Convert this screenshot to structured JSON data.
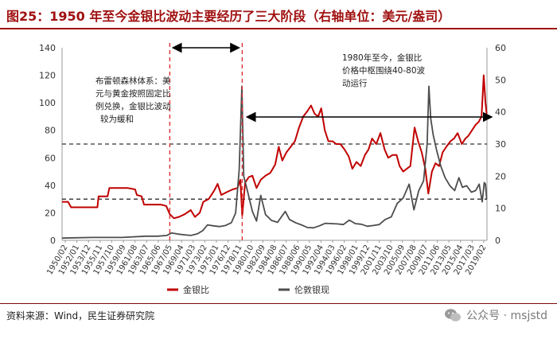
{
  "title": "图25：1950 年至今金银比波动主要经历了三大阶段（右轴单位：美元/盎司）",
  "source": "资料来源：Wind，民生证券研究院",
  "watermark": {
    "icon": "wechat-icon",
    "text": "公众号 · msjstd"
  },
  "colors": {
    "title": "#a01010",
    "gold_silver_ratio": "#c00000",
    "silver": "#4d4d4d",
    "phase_line": "#e03030"
  },
  "chart_data": {
    "type": "line",
    "x_tick_labels": [
      "1950/02",
      "1952/01",
      "1953/12",
      "1955/11",
      "1957/10",
      "1959/09",
      "1961/08",
      "1963/07",
      "1965/06",
      "1967/05",
      "1969/04",
      "1971/03",
      "1973/02",
      "1975/01",
      "1976/12",
      "1978/11",
      "1980/10",
      "1982/09",
      "1984/08",
      "1986/07",
      "1988/06",
      "1990/05",
      "1992/04",
      "1994/03",
      "1996/02",
      "1998/01",
      "1999/12",
      "2001/11",
      "2003/10",
      "2005/09",
      "2007/08",
      "2009/07",
      "2011/06",
      "2013/05",
      "2015/04",
      "2017/03",
      "2019/02"
    ],
    "y_left": {
      "min": 0,
      "max": 140,
      "ticks": [
        0,
        20,
        40,
        60,
        80,
        100,
        120,
        140
      ]
    },
    "y_right": {
      "min": 0,
      "max": 60,
      "ticks": [
        0,
        10,
        20,
        30,
        40,
        50,
        60
      ]
    },
    "series": [
      {
        "name": "金银比",
        "axis": "left",
        "color": "#c00000",
        "points": [
          [
            1950.0,
            28
          ],
          [
            1951.0,
            28
          ],
          [
            1951.5,
            24
          ],
          [
            1953,
            24
          ],
          [
            1955,
            24
          ],
          [
            1955.9,
            24
          ],
          [
            1956.1,
            32
          ],
          [
            1957.6,
            32
          ],
          [
            1957.9,
            38
          ],
          [
            1959,
            38
          ],
          [
            1961,
            38
          ],
          [
            1962.2,
            37
          ],
          [
            1962.5,
            33
          ],
          [
            1963.3,
            32
          ],
          [
            1963.7,
            26
          ],
          [
            1965,
            26
          ],
          [
            1966.5,
            26
          ],
          [
            1967.4,
            25
          ],
          [
            1968.0,
            19
          ],
          [
            1968.7,
            16
          ],
          [
            1969.5,
            17
          ],
          [
            1970.5,
            19
          ],
          [
            1971.5,
            22
          ],
          [
            1972.2,
            17
          ],
          [
            1973.0,
            20
          ],
          [
            1973.6,
            28
          ],
          [
            1974.5,
            30
          ],
          [
            1975.4,
            36
          ],
          [
            1976.0,
            41
          ],
          [
            1976.6,
            33
          ],
          [
            1977.5,
            35
          ],
          [
            1978.5,
            37
          ],
          [
            1979.3,
            38
          ],
          [
            1979.8,
            44
          ],
          [
            1980.1,
            18
          ],
          [
            1980.6,
            42
          ],
          [
            1981.2,
            46
          ],
          [
            1981.8,
            47
          ],
          [
            1982.5,
            38
          ],
          [
            1983.2,
            44
          ],
          [
            1984.0,
            47
          ],
          [
            1984.8,
            49
          ],
          [
            1985.6,
            55
          ],
          [
            1986.2,
            68
          ],
          [
            1986.8,
            58
          ],
          [
            1987.5,
            64
          ],
          [
            1988.2,
            68
          ],
          [
            1988.9,
            72
          ],
          [
            1989.6,
            82
          ],
          [
            1990.3,
            90
          ],
          [
            1991.0,
            94
          ],
          [
            1991.6,
            98
          ],
          [
            1992.2,
            92
          ],
          [
            1992.8,
            90
          ],
          [
            1993.3,
            96
          ],
          [
            1993.9,
            80
          ],
          [
            1994.5,
            72
          ],
          [
            1995.2,
            72
          ],
          [
            1995.8,
            70
          ],
          [
            1996.5,
            70
          ],
          [
            1997.2,
            66
          ],
          [
            1997.9,
            61
          ],
          [
            1998.5,
            52
          ],
          [
            1999.2,
            57
          ],
          [
            1999.9,
            54
          ],
          [
            2000.6,
            62
          ],
          [
            2001.2,
            66
          ],
          [
            2001.8,
            74
          ],
          [
            2002.5,
            70
          ],
          [
            2003.2,
            78
          ],
          [
            2003.9,
            66
          ],
          [
            2004.5,
            60
          ],
          [
            2005.2,
            62
          ],
          [
            2005.9,
            62
          ],
          [
            2006.4,
            54
          ],
          [
            2007.0,
            50
          ],
          [
            2007.6,
            52
          ],
          [
            2008.2,
            54
          ],
          [
            2008.9,
            82
          ],
          [
            2009.5,
            72
          ],
          [
            2010.1,
            64
          ],
          [
            2010.7,
            52
          ],
          [
            2011.2,
            34
          ],
          [
            2011.8,
            50
          ],
          [
            2012.4,
            56
          ],
          [
            2013.0,
            54
          ],
          [
            2013.6,
            64
          ],
          [
            2014.2,
            68
          ],
          [
            2014.9,
            72
          ],
          [
            2015.5,
            74
          ],
          [
            2016.1,
            78
          ],
          [
            2016.8,
            70
          ],
          [
            2017.4,
            74
          ],
          [
            2017.9,
            76
          ],
          [
            2018.5,
            80
          ],
          [
            2019.1,
            84
          ],
          [
            2019.6,
            86
          ],
          [
            2020.1,
            90
          ],
          [
            2020.45,
            120
          ],
          [
            2020.75,
            100
          ],
          [
            2020.95,
            92
          ]
        ]
      },
      {
        "name": "伦敦银现",
        "axis": "right",
        "color": "#4d4d4d",
        "points": [
          [
            1950.0,
            0.7
          ],
          [
            1955,
            0.9
          ],
          [
            1960,
            0.9
          ],
          [
            1964,
            1.3
          ],
          [
            1966,
            1.3
          ],
          [
            1967.5,
            1.5
          ],
          [
            1968.3,
            2.3
          ],
          [
            1969.5,
            1.9
          ],
          [
            1970.5,
            1.7
          ],
          [
            1971.5,
            1.5
          ],
          [
            1972.6,
            2.0
          ],
          [
            1973.5,
            3.0
          ],
          [
            1974.3,
            4.8
          ],
          [
            1975.3,
            4.5
          ],
          [
            1976.3,
            4.3
          ],
          [
            1977.3,
            4.6
          ],
          [
            1978.3,
            5.5
          ],
          [
            1979.0,
            8.5
          ],
          [
            1979.6,
            22
          ],
          [
            1980.05,
            48
          ],
          [
            1980.35,
            20
          ],
          [
            1980.9,
            16
          ],
          [
            1981.8,
            9
          ],
          [
            1982.5,
            6
          ],
          [
            1983.2,
            14
          ],
          [
            1984.0,
            8
          ],
          [
            1985.0,
            6.2
          ],
          [
            1986.0,
            5.6
          ],
          [
            1987.3,
            9
          ],
          [
            1988.0,
            6.5
          ],
          [
            1989.0,
            5.5
          ],
          [
            1990.0,
            4.8
          ],
          [
            1991.0,
            4.0
          ],
          [
            1992.0,
            3.9
          ],
          [
            1993.0,
            4.5
          ],
          [
            1994.0,
            5.3
          ],
          [
            1995.0,
            5.2
          ],
          [
            1996.0,
            5.1
          ],
          [
            1997.0,
            4.9
          ],
          [
            1998.0,
            6.3
          ],
          [
            1999.0,
            5.2
          ],
          [
            2000.0,
            5.0
          ],
          [
            2001.0,
            4.4
          ],
          [
            2002.0,
            4.6
          ],
          [
            2003.0,
            4.9
          ],
          [
            2004.0,
            6.5
          ],
          [
            2005.0,
            7.3
          ],
          [
            2006.0,
            11.5
          ],
          [
            2007.0,
            13.2
          ],
          [
            2008.0,
            17.5
          ],
          [
            2008.8,
            9.5
          ],
          [
            2009.6,
            15.5
          ],
          [
            2010.4,
            18.5
          ],
          [
            2011.0,
            30
          ],
          [
            2011.3,
            48
          ],
          [
            2011.6,
            38
          ],
          [
            2012.0,
            33
          ],
          [
            2012.6,
            28
          ],
          [
            2013.3,
            23
          ],
          [
            2014.0,
            19.5
          ],
          [
            2014.8,
            17
          ],
          [
            2015.6,
            15.5
          ],
          [
            2016.3,
            19.5
          ],
          [
            2016.9,
            16.5
          ],
          [
            2017.6,
            17
          ],
          [
            2018.4,
            15
          ],
          [
            2019.1,
            15.5
          ],
          [
            2019.7,
            17.5
          ],
          [
            2020.2,
            12
          ],
          [
            2020.55,
            18
          ],
          [
            2020.75,
            17.5
          ],
          [
            2020.95,
            13
          ]
        ]
      }
    ],
    "phase_dividers": [
      1968.0,
      1980.1
    ],
    "reference_lines_left": [
      70,
      30
    ],
    "annotations": [
      {
        "text": [
          "布雷顿森林体系：美",
          "元与黄金按照固定比",
          "例兑换，金银比波动",
          "较为缓和"
        ]
      },
      {
        "text": [
          "1980年至今，金银比",
          "价格中枢围绕40-80波",
          "动运行"
        ]
      }
    ],
    "legend": [
      {
        "name": "金银比",
        "color": "#c00000"
      },
      {
        "name": "伦敦银现",
        "color": "#4d4d4d"
      }
    ]
  }
}
